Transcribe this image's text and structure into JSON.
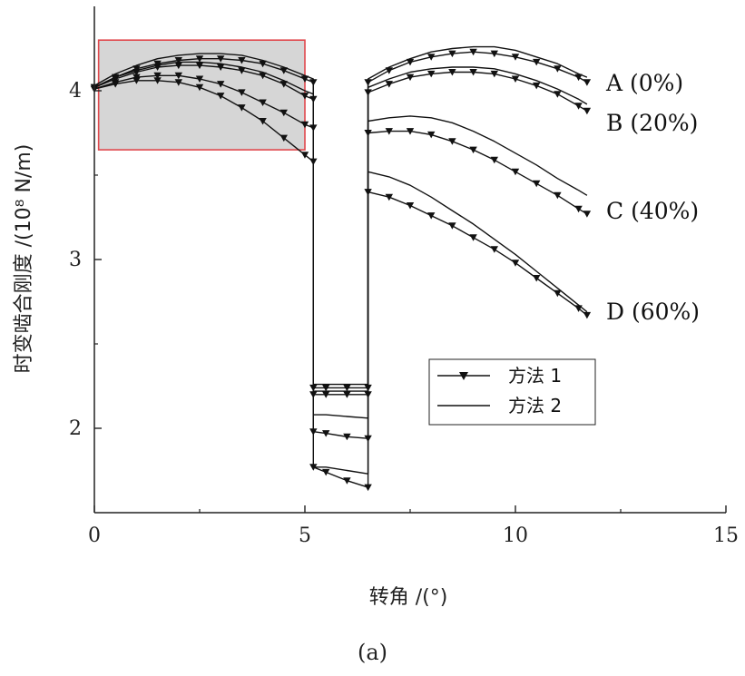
{
  "chart_data": {
    "type": "line",
    "xlabel": "转角 /(°)",
    "ylabel": "时变啮合刚度 /(10⁸ N/m)",
    "xlim": [
      0,
      15
    ],
    "ylim": [
      1.5,
      4.5
    ],
    "xticks": [
      "0",
      "5",
      "10",
      "15"
    ],
    "yticks": [
      "2",
      "3",
      "4"
    ],
    "highlight_region": {
      "x": [
        0.1,
        5.0
      ],
      "y": [
        3.65,
        4.3
      ],
      "fill": "#d6d6d6",
      "stroke": "#e0474c"
    },
    "curve_labels": [
      "A  (0%)",
      "B  (20%)",
      "C  (40%)",
      "D  (60%)"
    ],
    "legend": {
      "position": "lower-right-inside",
      "entries": [
        "方法 1",
        "方法 2"
      ]
    },
    "series": [
      {
        "name": "方法 1",
        "curve": "A",
        "marker": "triangle-down",
        "segments": [
          {
            "x": [
              0,
              0.5,
              1,
              1.5,
              2,
              2.5,
              3,
              3.5,
              4,
              4.5,
              5,
              5.2
            ],
            "y": [
              4.02,
              4.08,
              4.13,
              4.16,
              4.18,
              4.19,
              4.19,
              4.18,
              4.16,
              4.12,
              4.07,
              4.05
            ]
          },
          {
            "x": [
              5.2,
              5.5,
              6,
              6.5
            ],
            "y": [
              2.24,
              2.24,
              2.24,
              2.24
            ]
          },
          {
            "x": [
              6.5,
              7,
              7.5,
              8,
              8.5,
              9,
              9.5,
              10,
              10.5,
              11,
              11.5,
              11.7
            ],
            "y": [
              4.05,
              4.12,
              4.17,
              4.2,
              4.22,
              4.23,
              4.22,
              4.2,
              4.17,
              4.13,
              4.08,
              4.05
            ]
          }
        ]
      },
      {
        "name": "方法 1",
        "curve": "B",
        "marker": "triangle-down",
        "segments": [
          {
            "x": [
              0,
              0.5,
              1,
              1.5,
              2,
              2.5,
              3,
              3.5,
              4,
              4.5,
              5,
              5.2
            ],
            "y": [
              4.02,
              4.07,
              4.11,
              4.14,
              4.15,
              4.15,
              4.14,
              4.12,
              4.09,
              4.04,
              3.97,
              3.95
            ]
          },
          {
            "x": [
              5.2,
              5.5,
              6,
              6.5
            ],
            "y": [
              2.2,
              2.2,
              2.2,
              2.2
            ]
          },
          {
            "x": [
              6.5,
              7,
              7.5,
              8,
              8.5,
              9,
              9.5,
              10,
              10.5,
              11,
              11.5,
              11.7
            ],
            "y": [
              3.99,
              4.04,
              4.08,
              4.1,
              4.11,
              4.11,
              4.1,
              4.07,
              4.03,
              3.98,
              3.91,
              3.88
            ]
          }
        ]
      },
      {
        "name": "方法 1",
        "curve": "C",
        "marker": "triangle-down",
        "segments": [
          {
            "x": [
              0,
              0.5,
              1,
              1.5,
              2,
              2.5,
              3,
              3.5,
              4,
              4.5,
              5,
              5.2
            ],
            "y": [
              4.01,
              4.05,
              4.08,
              4.09,
              4.09,
              4.07,
              4.04,
              3.99,
              3.93,
              3.87,
              3.8,
              3.78
            ]
          },
          {
            "x": [
              5.2,
              5.5,
              6,
              6.5
            ],
            "y": [
              1.98,
              1.97,
              1.95,
              1.94
            ]
          },
          {
            "x": [
              6.5,
              7,
              7.5,
              8,
              8.5,
              9,
              9.5,
              10,
              10.5,
              11,
              11.5,
              11.7
            ],
            "y": [
              3.75,
              3.76,
              3.76,
              3.74,
              3.7,
              3.65,
              3.59,
              3.52,
              3.45,
              3.38,
              3.3,
              3.27
            ]
          }
        ]
      },
      {
        "name": "方法 1",
        "curve": "D",
        "marker": "triangle-down",
        "segments": [
          {
            "x": [
              0,
              0.5,
              1,
              1.5,
              2,
              2.5,
              3,
              3.5,
              4,
              4.5,
              5,
              5.2
            ],
            "y": [
              4.01,
              4.04,
              4.06,
              4.06,
              4.05,
              4.02,
              3.97,
              3.9,
              3.82,
              3.72,
              3.62,
              3.58
            ]
          },
          {
            "x": [
              5.2,
              5.5,
              6,
              6.5
            ],
            "y": [
              1.77,
              1.74,
              1.69,
              1.65
            ]
          },
          {
            "x": [
              6.5,
              7,
              7.5,
              8,
              8.5,
              9,
              9.5,
              10,
              10.5,
              11,
              11.5,
              11.7
            ],
            "y": [
              3.4,
              3.37,
              3.32,
              3.26,
              3.2,
              3.13,
              3.06,
              2.98,
              2.89,
              2.8,
              2.71,
              2.67
            ]
          }
        ]
      },
      {
        "name": "方法 2",
        "curve": "A",
        "marker": "none",
        "segments": [
          {
            "x": [
              0,
              0.5,
              1,
              1.5,
              2,
              2.5,
              3,
              3.5,
              4,
              4.5,
              5,
              5.2
            ],
            "y": [
              4.03,
              4.1,
              4.15,
              4.19,
              4.21,
              4.22,
              4.22,
              4.21,
              4.18,
              4.14,
              4.09,
              4.07
            ]
          },
          {
            "x": [
              5.2,
              5.5,
              6,
              6.5
            ],
            "y": [
              2.26,
              2.26,
              2.26,
              2.26
            ]
          },
          {
            "x": [
              6.5,
              7,
              7.5,
              8,
              8.5,
              9,
              9.5,
              10,
              10.5,
              11,
              11.5,
              11.7
            ],
            "y": [
              4.07,
              4.14,
              4.19,
              4.23,
              4.25,
              4.26,
              4.26,
              4.24,
              4.2,
              4.16,
              4.1,
              4.08
            ]
          }
        ]
      },
      {
        "name": "方法 2",
        "curve": "B",
        "marker": "none",
        "segments": [
          {
            "x": [
              0,
              0.5,
              1,
              1.5,
              2,
              2.5,
              3,
              3.5,
              4,
              4.5,
              5,
              5.2
            ],
            "y": [
              4.02,
              4.08,
              4.12,
              4.15,
              4.17,
              4.17,
              4.16,
              4.14,
              4.11,
              4.06,
              4.0,
              3.98
            ]
          },
          {
            "x": [
              5.2,
              5.5,
              6,
              6.5
            ],
            "y": [
              2.22,
              2.22,
              2.22,
              2.22
            ]
          },
          {
            "x": [
              6.5,
              7,
              7.5,
              8,
              8.5,
              9,
              9.5,
              10,
              10.5,
              11,
              11.5,
              11.7
            ],
            "y": [
              4.02,
              4.07,
              4.11,
              4.13,
              4.14,
              4.14,
              4.13,
              4.1,
              4.06,
              4.01,
              3.95,
              3.92
            ]
          }
        ]
      },
      {
        "name": "方法 2",
        "curve": "C",
        "marker": "none",
        "segments": [
          {
            "x": [
              5.2,
              5.5,
              6,
              6.5
            ],
            "y": [
              2.08,
              2.08,
              2.07,
              2.06
            ]
          },
          {
            "x": [
              6.5,
              7,
              7.5,
              8,
              8.5,
              9,
              9.5,
              10,
              10.5,
              11,
              11.5,
              11.7
            ],
            "y": [
              3.82,
              3.84,
              3.85,
              3.84,
              3.81,
              3.76,
              3.7,
              3.63,
              3.56,
              3.48,
              3.41,
              3.38
            ]
          }
        ]
      },
      {
        "name": "方法 2",
        "curve": "D",
        "marker": "none",
        "segments": [
          {
            "x": [
              5.2,
              5.5,
              6,
              6.5
            ],
            "y": [
              1.77,
              1.77,
              1.75,
              1.73
            ]
          },
          {
            "x": [
              6.5,
              7,
              7.5,
              8,
              8.5,
              9,
              9.5,
              10,
              10.5,
              11,
              11.5,
              11.7
            ],
            "y": [
              3.52,
              3.49,
              3.44,
              3.37,
              3.29,
              3.21,
              3.12,
              3.03,
              2.93,
              2.83,
              2.73,
              2.69
            ]
          }
        ]
      }
    ]
  },
  "caption": "(a)"
}
